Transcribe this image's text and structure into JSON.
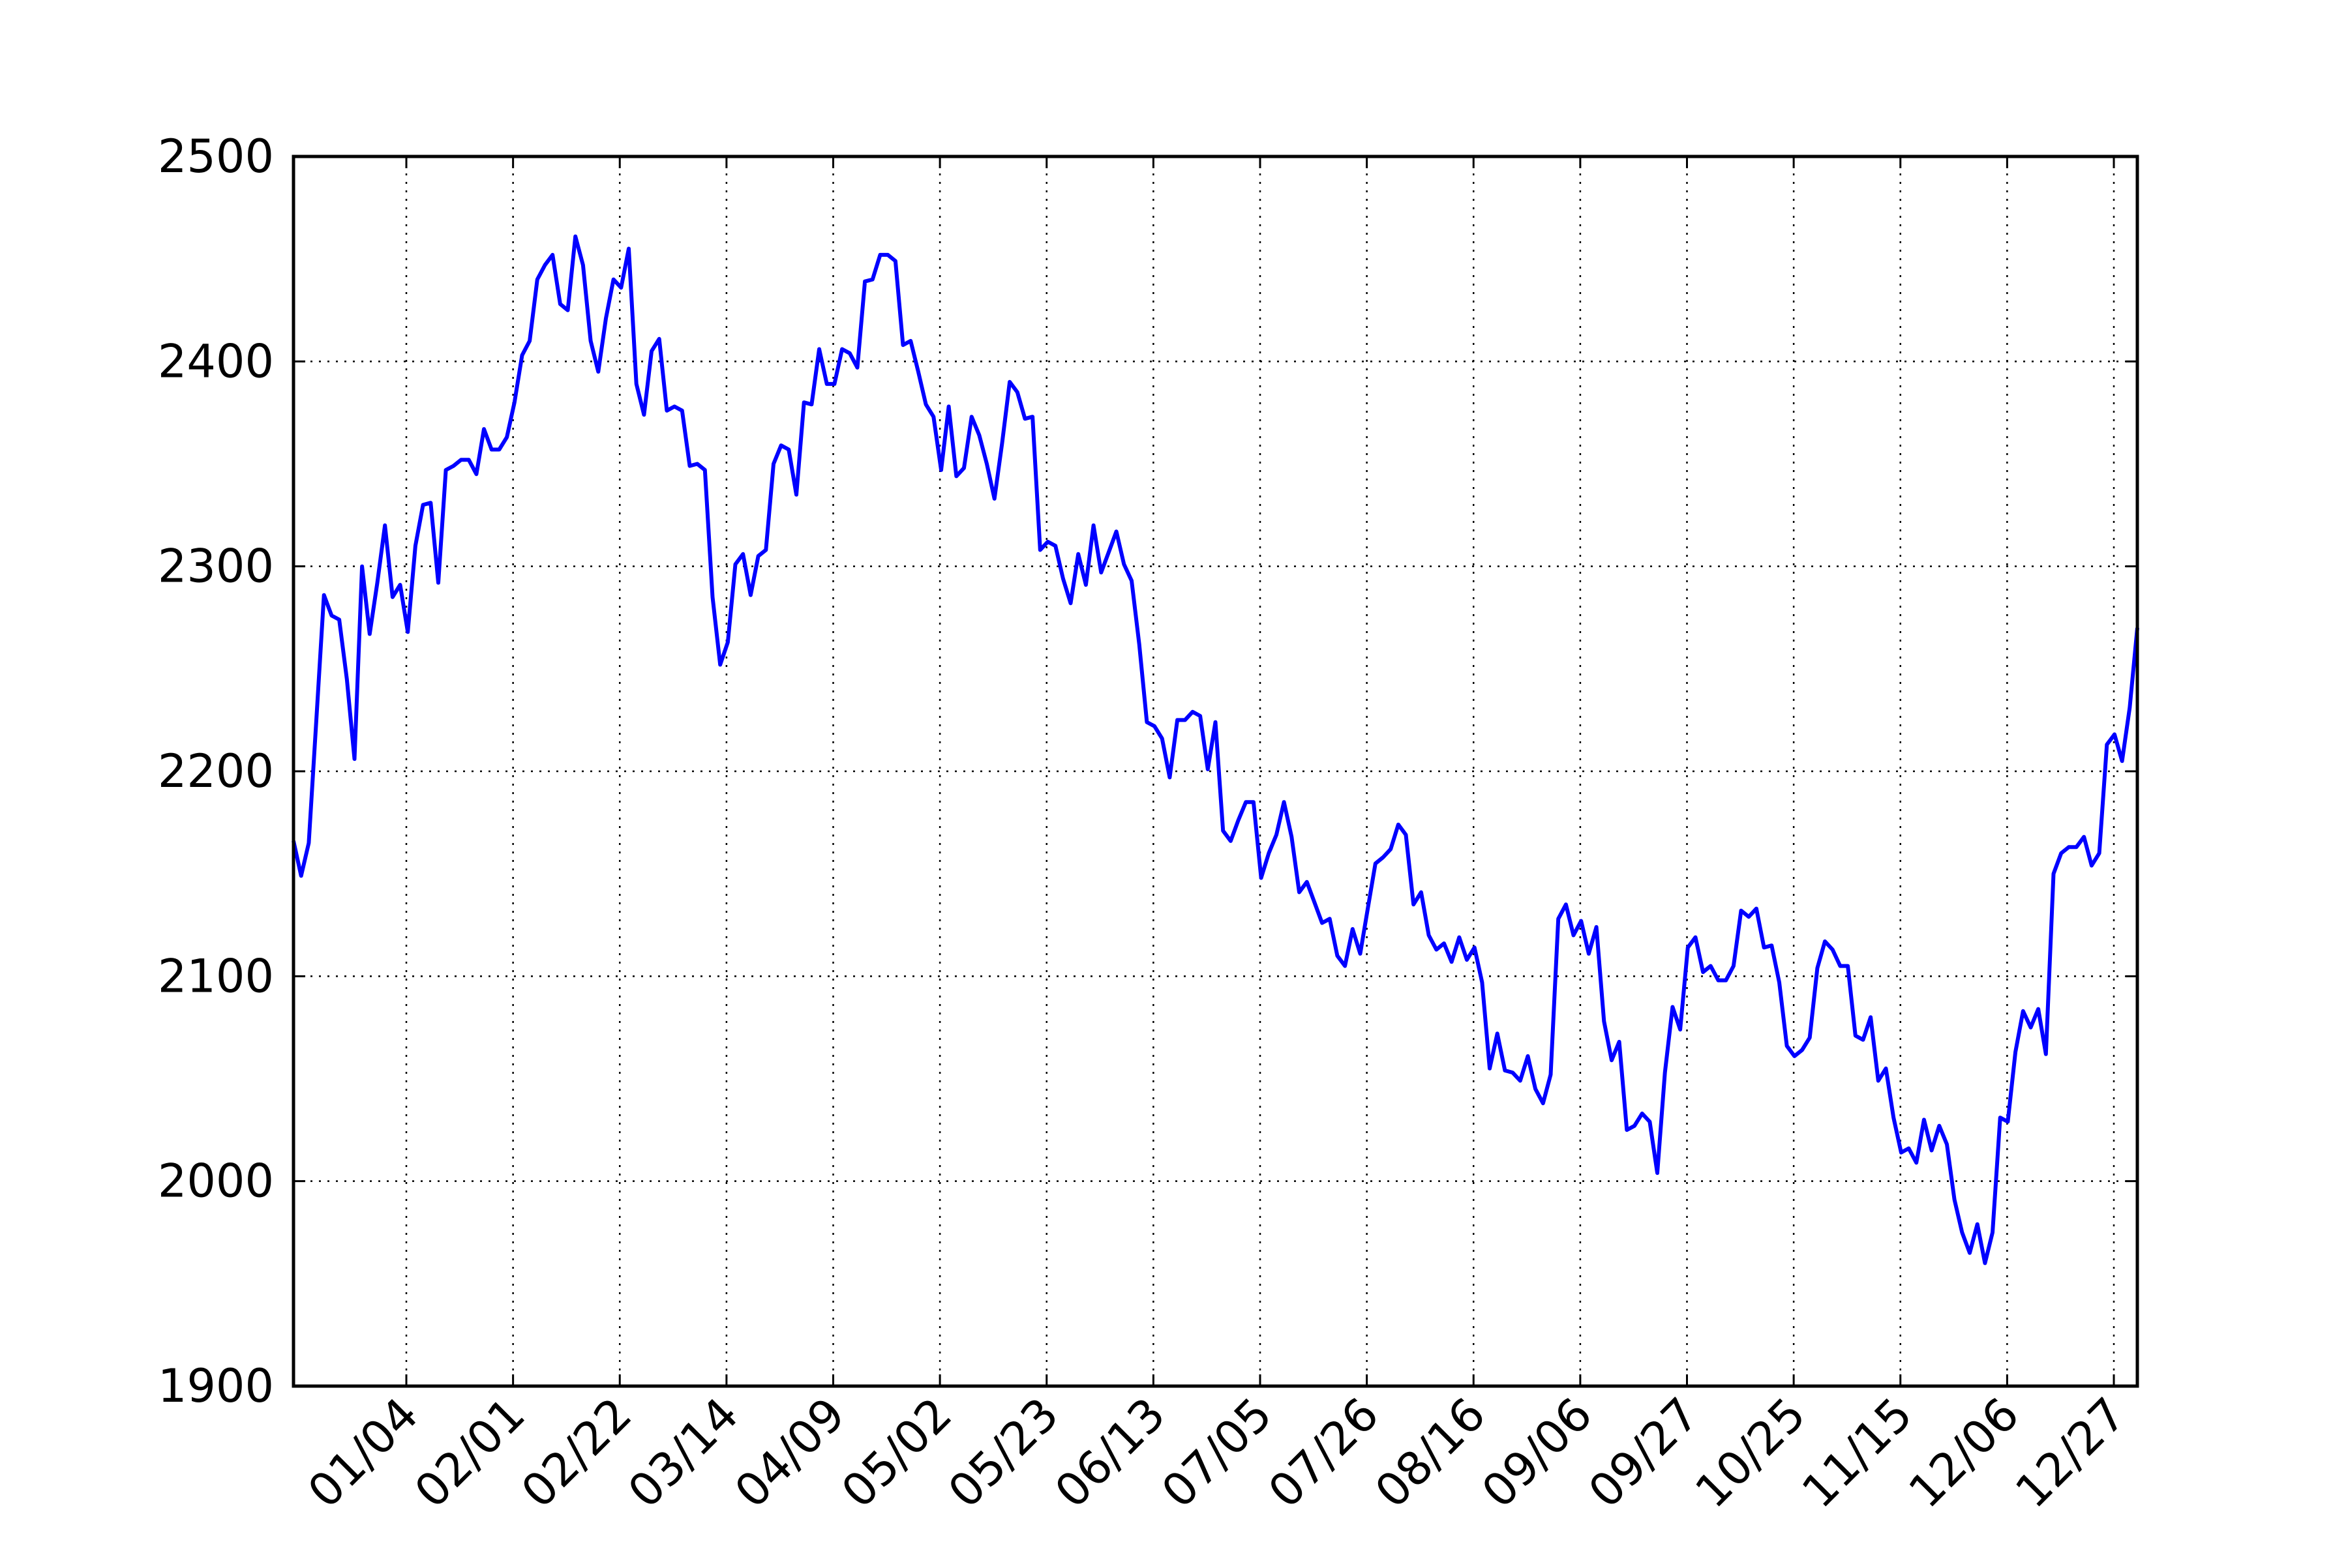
{
  "chart_data": {
    "type": "line",
    "title": "",
    "xlabel": "",
    "ylabel": "",
    "ylim": [
      1900,
      2500
    ],
    "yticks": [
      1900,
      2000,
      2100,
      2200,
      2300,
      2400,
      2500
    ],
    "xtick_labels": [
      "01/04",
      "02/01",
      "02/22",
      "03/14",
      "04/09",
      "05/02",
      "05/23",
      "06/13",
      "07/05",
      "07/26",
      "08/16",
      "09/06",
      "09/27",
      "10/25",
      "11/15",
      "12/06",
      "12/27"
    ],
    "grid": true,
    "grid_style": "dotted",
    "line_color": "#0000ff",
    "series": [
      {
        "values": [
          2166,
          2149,
          2165,
          2225,
          2286,
          2276,
          2274,
          2245,
          2206,
          2300,
          2267,
          2292,
          2320,
          2285,
          2291,
          2268,
          2310,
          2330,
          2331,
          2292,
          2347,
          2349,
          2352,
          2352,
          2345,
          2367,
          2357,
          2357,
          2363,
          2380,
          2403,
          2410,
          2440,
          2447,
          2452,
          2428,
          2425,
          2461,
          2447,
          2410,
          2395,
          2421,
          2440,
          2436,
          2455,
          2389,
          2374,
          2405,
          2411,
          2376,
          2378,
          2376,
          2349,
          2350,
          2347,
          2285,
          2252,
          2263,
          2301,
          2306,
          2286,
          2305,
          2308,
          2350,
          2359,
          2357,
          2335,
          2380,
          2379,
          2406,
          2389,
          2389,
          2406,
          2404,
          2397,
          2439,
          2440,
          2452,
          2452,
          2449,
          2408,
          2410,
          2395,
          2379,
          2373,
          2347,
          2378,
          2344,
          2348,
          2373,
          2364,
          2350,
          2333,
          2360,
          2390,
          2385,
          2372,
          2373,
          2308,
          2312,
          2310,
          2294,
          2282,
          2306,
          2291,
          2320,
          2297,
          2307,
          2317,
          2301,
          2293,
          2262,
          2224,
          2222,
          2216,
          2197,
          2225,
          2225,
          2229,
          2227,
          2201,
          2224,
          2171,
          2166,
          2176,
          2185,
          2185,
          2148,
          2160,
          2169,
          2185,
          2168,
          2141,
          2146,
          2136,
          2126,
          2128,
          2110,
          2105,
          2123,
          2111,
          2133,
          2155,
          2158,
          2162,
          2174,
          2169,
          2135,
          2141,
          2120,
          2113,
          2116,
          2107,
          2119,
          2108,
          2114,
          2097,
          2055,
          2072,
          2054,
          2053,
          2049,
          2061,
          2045,
          2038,
          2052,
          2128,
          2135,
          2120,
          2127,
          2111,
          2124,
          2078,
          2059,
          2068,
          2025,
          2027,
          2033,
          2029,
          2004,
          2053,
          2085,
          2074,
          2114,
          2119,
          2102,
          2105,
          2098,
          2098,
          2105,
          2132,
          2129,
          2133,
          2114,
          2115,
          2097,
          2066,
          2061,
          2064,
          2070,
          2104,
          2117,
          2113,
          2105,
          2105,
          2071,
          2069,
          2080,
          2049,
          2055,
          2031,
          2014,
          2016,
          2009,
          2030,
          2015,
          2027,
          2018,
          1991,
          1975,
          1965,
          1979,
          1960,
          1975,
          2031,
          2029,
          2063,
          2083,
          2075,
          2084,
          2062,
          2150,
          2160,
          2163,
          2163,
          2168,
          2154,
          2160,
          2213,
          2218,
          2205,
          2231,
          2270
        ]
      }
    ]
  }
}
